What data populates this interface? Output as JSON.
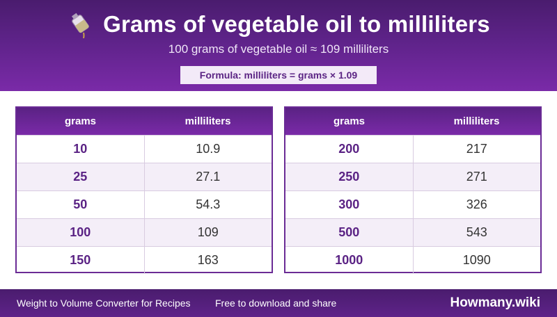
{
  "header": {
    "icon": "oil-bottle-pour-icon",
    "title": "Grams of vegetable oil to milliliters",
    "subtitle": "100 grams of vegetable oil ≈ 109 milliliters",
    "formula": "Formula: milliliters = grams × 1.09"
  },
  "tables": {
    "left": {
      "col_grams": "grams",
      "col_ml": "milliliters",
      "rows": [
        {
          "grams": "10",
          "ml": "10.9"
        },
        {
          "grams": "25",
          "ml": "27.1"
        },
        {
          "grams": "50",
          "ml": "54.3"
        },
        {
          "grams": "100",
          "ml": "109"
        },
        {
          "grams": "150",
          "ml": "163"
        }
      ]
    },
    "right": {
      "col_grams": "grams",
      "col_ml": "milliliters",
      "rows": [
        {
          "grams": "200",
          "ml": "217"
        },
        {
          "grams": "250",
          "ml": "271"
        },
        {
          "grams": "300",
          "ml": "326"
        },
        {
          "grams": "500",
          "ml": "543"
        },
        {
          "grams": "1000",
          "ml": "1090"
        }
      ]
    }
  },
  "footer": {
    "left": "Weight to Volume Converter for Recipes",
    "middle": "Free to download and share",
    "brand": "Howmany.wiki"
  },
  "colors": {
    "primary": "#5e2389",
    "accent": "#7a2aa8",
    "alt_row": "#f4eef8"
  }
}
